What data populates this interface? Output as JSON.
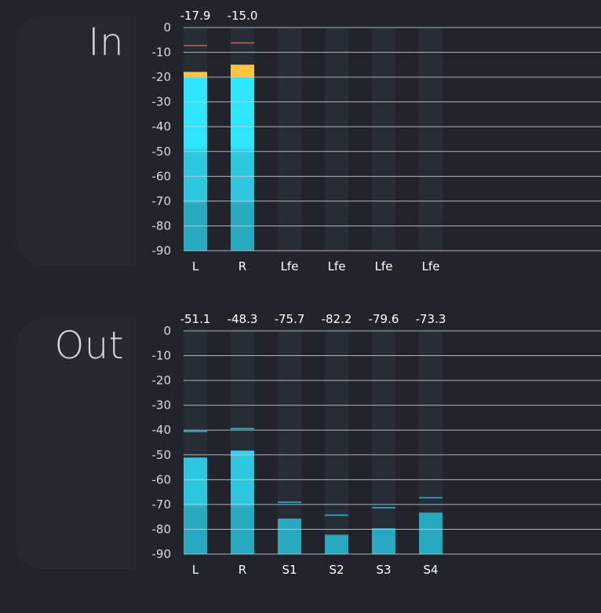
{
  "panels": [
    {
      "label": "In",
      "scale_ticks": [
        "0",
        "-10",
        "-20",
        "-30",
        "-40",
        "-50",
        "-60",
        "-70",
        "-80",
        "-90"
      ],
      "channels": [
        {
          "label": "L",
          "level": -17.9,
          "peak_hold": -7.3,
          "peak_text": "-17.9",
          "hold_color": "#d85a5a"
        },
        {
          "label": "R",
          "level": -15.0,
          "peak_hold": -6.2,
          "peak_text": "-15.0",
          "hold_color": "#d85a5a"
        },
        {
          "label": "Lfe",
          "level": null,
          "peak_hold": null,
          "peak_text": ""
        },
        {
          "label": "Lfe",
          "level": null,
          "peak_hold": null,
          "peak_text": ""
        },
        {
          "label": "Lfe",
          "level": null,
          "peak_hold": null,
          "peak_text": ""
        },
        {
          "label": "Lfe",
          "level": null,
          "peak_hold": null,
          "peak_text": ""
        }
      ]
    },
    {
      "label": "Out",
      "scale_ticks": [
        "0",
        "-10",
        "-20",
        "-30",
        "-40",
        "-50",
        "-60",
        "-70",
        "-80",
        "-90"
      ],
      "channels": [
        {
          "label": "L",
          "level": -51.1,
          "peak_hold": -40.6,
          "peak_text": "-51.1",
          "hold_color": "#2bbcd4"
        },
        {
          "label": "R",
          "level": -48.3,
          "peak_hold": -39.4,
          "peak_text": "-48.3",
          "hold_color": "#2bbcd4"
        },
        {
          "label": "S1",
          "level": -75.7,
          "peak_hold": -69.1,
          "peak_text": "-75.7",
          "hold_color": "#2bbcd4"
        },
        {
          "label": "S2",
          "level": -82.2,
          "peak_hold": -74.3,
          "peak_text": "-82.2",
          "hold_color": "#2bbcd4"
        },
        {
          "label": "S3",
          "level": -79.6,
          "peak_hold": -71.3,
          "peak_text": "-79.6",
          "hold_color": "#2bbcd4"
        },
        {
          "label": "S4",
          "level": -73.3,
          "peak_hold": -67.3,
          "peak_text": "-73.3",
          "hold_color": "#2bbcd4"
        }
      ]
    }
  ],
  "colors": {
    "bar_high": "#2ee6ff",
    "bar_mid": "#2dc7df",
    "bar_low": "#28a9bf",
    "bar_warn": "#ffc53d",
    "track": "#262d34",
    "gridline": "#c9ccd0",
    "background": "#21242a"
  }
}
